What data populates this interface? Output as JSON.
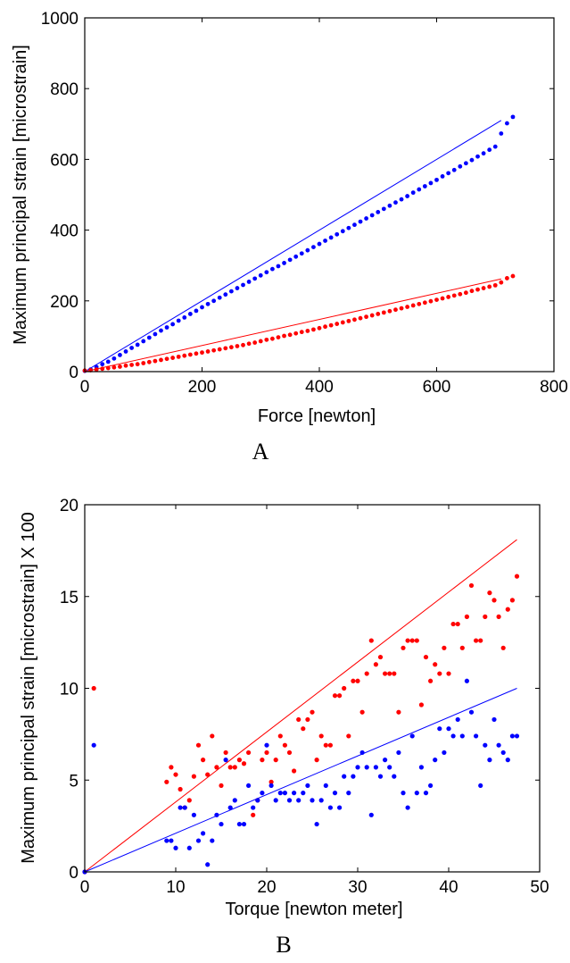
{
  "chart_data": [
    {
      "type": "scatter",
      "panel_label": "A",
      "xlabel": "Force [newton]",
      "ylabel": "Maximum principal strain [microstrain]",
      "xlim": [
        0,
        800
      ],
      "ylim": [
        0,
        1000
      ],
      "xticks": [
        0,
        200,
        400,
        600,
        800
      ],
      "yticks": [
        0,
        200,
        400,
        600,
        800,
        1000
      ],
      "grid": false,
      "colors": {
        "blue": "#0000ff",
        "red": "#ff0000"
      },
      "series": [
        {
          "color": "#0000ff",
          "x": [
            0,
            10,
            20,
            30,
            40,
            50,
            60,
            70,
            80,
            90,
            100,
            110,
            120,
            130,
            140,
            150,
            160,
            170,
            180,
            190,
            200,
            210,
            220,
            230,
            240,
            250,
            260,
            270,
            280,
            290,
            300,
            310,
            320,
            330,
            340,
            350,
            360,
            370,
            380,
            390,
            400,
            410,
            420,
            430,
            440,
            450,
            460,
            470,
            480,
            490,
            500,
            510,
            520,
            530,
            540,
            550,
            560,
            570,
            580,
            590,
            600,
            610,
            620,
            630,
            640,
            650,
            660,
            670,
            680,
            690,
            700,
            710,
            720,
            730
          ],
          "y": [
            2,
            6,
            13,
            21,
            28,
            37,
            47,
            57,
            67,
            76,
            86,
            96,
            106,
            116,
            125,
            134,
            144,
            153,
            163,
            172,
            182,
            191,
            200,
            209,
            218,
            227,
            236,
            245,
            254,
            263,
            272,
            281,
            290,
            298,
            307,
            316,
            325,
            334,
            343,
            352,
            361,
            370,
            379,
            388,
            397,
            406,
            415,
            424,
            433,
            442,
            451,
            460,
            469,
            478,
            487,
            496,
            506,
            515,
            524,
            533,
            542,
            552,
            561,
            570,
            580,
            589,
            598,
            608,
            617,
            627,
            636,
            673,
            702,
            720
          ]
        },
        {
          "color": "#ff0000",
          "x": [
            0,
            10,
            20,
            30,
            40,
            50,
            60,
            70,
            80,
            90,
            100,
            110,
            120,
            130,
            140,
            150,
            160,
            170,
            180,
            190,
            200,
            210,
            220,
            230,
            240,
            250,
            260,
            270,
            280,
            290,
            300,
            310,
            320,
            330,
            340,
            350,
            360,
            370,
            380,
            390,
            400,
            410,
            420,
            430,
            440,
            450,
            460,
            470,
            480,
            490,
            500,
            510,
            520,
            530,
            540,
            550,
            560,
            570,
            580,
            590,
            600,
            610,
            620,
            630,
            640,
            650,
            660,
            670,
            680,
            690,
            700,
            710,
            720,
            730
          ],
          "y": [
            3,
            4,
            6,
            8,
            10,
            12,
            14,
            17,
            19,
            21,
            24,
            27,
            30,
            33,
            36,
            39,
            42,
            45,
            48,
            51,
            54,
            57,
            60,
            63,
            66,
            69,
            72,
            75,
            79,
            82,
            86,
            90,
            93,
            97,
            101,
            104,
            108,
            112,
            115,
            119,
            123,
            127,
            131,
            135,
            139,
            143,
            147,
            151,
            155,
            159,
            163,
            167,
            171,
            175,
            179,
            183,
            187,
            191,
            195,
            199,
            203,
            207,
            211,
            215,
            219,
            223,
            228,
            232,
            236,
            240,
            244,
            252,
            264,
            270
          ]
        }
      ],
      "fit_lines": [
        {
          "color": "#0000ff",
          "x": [
            0,
            710
          ],
          "y": [
            0,
            710
          ]
        },
        {
          "color": "#ff0000",
          "x": [
            0,
            710
          ],
          "y": [
            0,
            262
          ]
        }
      ]
    },
    {
      "type": "scatter",
      "panel_label": "B",
      "xlabel": "Torque [newton meter]",
      "ylabel": "Maximum principal strain [microstrain] X 100",
      "xlim": [
        0,
        50
      ],
      "ylim": [
        0,
        20
      ],
      "xticks": [
        0,
        10,
        20,
        30,
        40,
        50
      ],
      "yticks": [
        0,
        5,
        10,
        15,
        20
      ],
      "grid": false,
      "colors": {
        "blue": "#0000ff",
        "red": "#ff0000"
      },
      "series": [
        {
          "color": "#ff0000",
          "x": [
            0,
            1,
            9,
            9.5,
            10,
            10.5,
            11,
            11.5,
            12,
            12.5,
            13,
            13.5,
            14,
            14.5,
            15,
            15.5,
            16,
            16.5,
            17,
            17.5,
            18,
            18.5,
            19,
            19.5,
            20,
            20.5,
            21,
            21.5,
            22,
            22.5,
            23,
            23.5,
            24,
            24.5,
            25,
            25.5,
            26,
            26.5,
            27,
            27.5,
            28,
            28.5,
            29,
            29.5,
            30,
            30.5,
            31,
            31.5,
            32,
            32.5,
            33,
            33.5,
            34,
            34.5,
            35,
            35.5,
            36,
            36.5,
            37,
            37.5,
            38,
            38.5,
            39,
            39.5,
            40,
            40.5,
            41,
            41.5,
            42,
            42.5,
            43,
            43.5,
            44,
            44.5,
            45,
            45.5,
            46,
            46.5,
            47,
            47.5
          ],
          "y": [
            0,
            10,
            4.9,
            5.7,
            5.3,
            4.5,
            3.5,
            3.9,
            5.2,
            6.9,
            6.1,
            5.3,
            7.4,
            5.7,
            4.7,
            6.5,
            5.7,
            5.7,
            6.1,
            5.9,
            6.5,
            3.1,
            3.9,
            6.1,
            6.5,
            4.9,
            6.1,
            7.4,
            6.9,
            6.5,
            5.5,
            8.3,
            7.8,
            8.3,
            8.7,
            6.1,
            7.4,
            6.9,
            6.9,
            9.6,
            9.6,
            10,
            7.4,
            10.4,
            10.4,
            8.7,
            10.8,
            12.6,
            11.3,
            11.7,
            10.8,
            10.8,
            10.8,
            8.7,
            12.2,
            12.6,
            12.6,
            12.6,
            9.1,
            11.7,
            10.4,
            11.3,
            10.8,
            12.2,
            10.8,
            13.5,
            13.5,
            12.2,
            13.9,
            15.6,
            12.6,
            12.6,
            13.9,
            15.2,
            14.8,
            13.9,
            12.2,
            14.3,
            14.8,
            16.1
          ]
        },
        {
          "color": "#0000ff",
          "x": [
            0,
            1,
            9,
            9.5,
            10,
            10.5,
            11,
            11.5,
            12,
            12.5,
            13,
            13.5,
            14,
            14.5,
            15,
            15.5,
            16,
            16.5,
            17,
            17.5,
            18,
            18.5,
            19,
            19.5,
            20,
            20.5,
            21,
            21.5,
            22,
            22.5,
            23,
            23.5,
            24,
            24.5,
            25,
            25.5,
            26,
            26.5,
            27,
            27.5,
            28,
            28.5,
            29,
            29.5,
            30,
            30.5,
            31,
            31.5,
            32,
            32.5,
            33,
            33.5,
            34,
            34.5,
            35,
            35.5,
            36,
            36.5,
            37,
            37.5,
            38,
            38.5,
            39,
            39.5,
            40,
            40.5,
            41,
            41.5,
            42,
            42.5,
            43,
            43.5,
            44,
            44.5,
            45,
            45.5,
            46,
            46.5,
            47,
            47.5
          ],
          "y": [
            0,
            6.9,
            1.7,
            1.7,
            1.3,
            3.5,
            3.5,
            1.3,
            3.1,
            1.7,
            2.1,
            0.4,
            1.7,
            3.1,
            2.6,
            6.1,
            3.5,
            3.9,
            2.6,
            2.6,
            4.7,
            3.5,
            3.9,
            4.3,
            6.9,
            4.7,
            3.9,
            4.3,
            4.3,
            3.9,
            4.3,
            3.9,
            4.3,
            4.7,
            3.9,
            2.6,
            3.9,
            4.7,
            3.5,
            4.3,
            3.5,
            5.2,
            4.3,
            5.2,
            5.7,
            6.5,
            5.7,
            3.1,
            5.7,
            5.2,
            6.1,
            5.7,
            5.2,
            6.5,
            4.3,
            3.5,
            7.4,
            4.3,
            5.7,
            4.3,
            4.7,
            6.1,
            7.8,
            6.5,
            7.8,
            7.4,
            8.3,
            7.4,
            10.4,
            8.7,
            7.4,
            4.7,
            6.9,
            6.1,
            8.3,
            6.9,
            6.5,
            6.1,
            7.4,
            7.4
          ]
        }
      ],
      "fit_lines": [
        {
          "color": "#ff0000",
          "x": [
            0,
            47.5
          ],
          "y": [
            0,
            18.1
          ]
        },
        {
          "color": "#0000ff",
          "x": [
            0,
            47.5
          ],
          "y": [
            0,
            10
          ]
        }
      ]
    }
  ]
}
